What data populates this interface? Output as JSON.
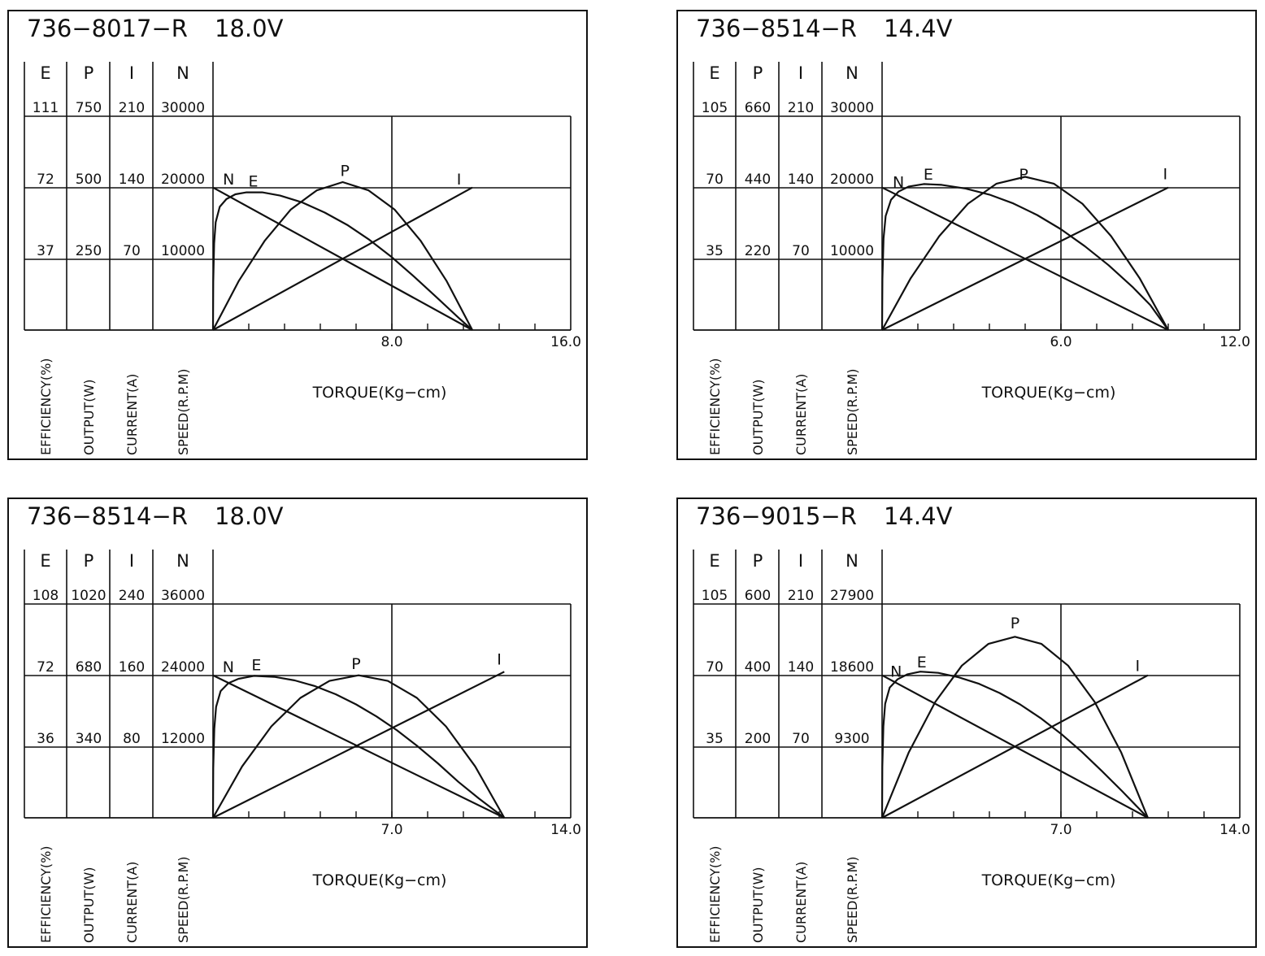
{
  "style": {
    "ink": "#111111",
    "background": "#ffffff"
  },
  "axis_headers": {
    "efficiency": "E",
    "output": "P",
    "current": "I",
    "speed": "N"
  },
  "axis_labels": {
    "efficiency": "EFFICIENCY(%)",
    "output": "OUTPUT(W)",
    "current": "CURRENT(A)",
    "speed": "SPEED(R.P.M)",
    "torque": "TORQUE(Kg−cm)"
  },
  "chart_data": [
    {
      "type": "line",
      "title": "736−8017−R",
      "voltage": "18.0V",
      "xlabel": "TORQUE(Kg−cm)",
      "xlim": [
        0,
        16
      ],
      "x_ticks": [
        "8.0",
        "16.0"
      ],
      "x_minor_step": 1.6,
      "y_scale_labels": {
        "E": [
          "111",
          "72",
          "37"
        ],
        "P": [
          "750",
          "500",
          "250"
        ],
        "I": [
          "210",
          "140",
          "70"
        ],
        "N": [
          "30000",
          "20000",
          "10000"
        ]
      },
      "series": [
        {
          "name": "N",
          "axis": "speed",
          "unit_max": 30000,
          "label_at": [
            0.7,
            20400
          ],
          "points": [
            [
              0,
              20000
            ],
            [
              11.6,
              0
            ]
          ]
        },
        {
          "name": "I",
          "axis": "current",
          "unit_max": 210,
          "label_at": [
            11.0,
            143
          ],
          "points": [
            [
              0,
              0
            ],
            [
              11.6,
              140
            ]
          ]
        },
        {
          "name": "P",
          "axis": "output",
          "unit_max": 750,
          "label_at": [
            5.9,
            540
          ],
          "points": [
            [
              0,
              0
            ],
            [
              1.16,
              173
            ],
            [
              2.32,
              314
            ],
            [
              3.48,
              423
            ],
            [
              4.64,
              490
            ],
            [
              5.8,
              519
            ],
            [
              6.96,
              490
            ],
            [
              8.12,
              423
            ],
            [
              9.28,
              314
            ],
            [
              10.44,
              173
            ],
            [
              11.6,
              0
            ]
          ]
        },
        {
          "name": "E",
          "axis": "efficiency",
          "unit_max": 111,
          "label_at": [
            1.8,
            74.5
          ],
          "points": [
            [
              0,
              0
            ],
            [
              0.01,
              25
            ],
            [
              0.05,
              45
            ],
            [
              0.12,
              56
            ],
            [
              0.3,
              64
            ],
            [
              0.6,
              68
            ],
            [
              1.0,
              70.5
            ],
            [
              1.5,
              71.5
            ],
            [
              2.2,
              71.5
            ],
            [
              3.0,
              69.8
            ],
            [
              4.0,
              66.2
            ],
            [
              5.0,
              61
            ],
            [
              6.0,
              54.6
            ],
            [
              7.0,
              46.8
            ],
            [
              8.0,
              37.8
            ],
            [
              9.0,
              27.7
            ],
            [
              10.0,
              17
            ],
            [
              11.0,
              6.2
            ],
            [
              11.6,
              0
            ]
          ]
        }
      ]
    },
    {
      "type": "line",
      "title": "736−8514−R",
      "voltage": "14.4V",
      "xlabel": "TORQUE(Kg−cm)",
      "xlim": [
        0,
        12
      ],
      "x_ticks": [
        "6.0",
        "12.0"
      ],
      "x_minor_step": 1.2,
      "y_scale_labels": {
        "E": [
          "105",
          "70",
          "35"
        ],
        "P": [
          "660",
          "440",
          "220"
        ],
        "I": [
          "210",
          "140",
          "70"
        ],
        "N": [
          "30000",
          "20000",
          "10000"
        ]
      },
      "series": [
        {
          "name": "N",
          "axis": "speed",
          "unit_max": 30000,
          "label_at": [
            0.55,
            20000
          ],
          "points": [
            [
              0,
              20000
            ],
            [
              9.6,
              0
            ]
          ]
        },
        {
          "name": "I",
          "axis": "current",
          "unit_max": 210,
          "label_at": [
            9.5,
            148
          ],
          "points": [
            [
              0,
              0
            ],
            [
              9.6,
              140
            ]
          ]
        },
        {
          "name": "P",
          "axis": "output",
          "unit_max": 660,
          "label_at": [
            4.75,
            464
          ],
          "points": [
            [
              0,
              0
            ],
            [
              0.96,
              160
            ],
            [
              1.92,
              290
            ],
            [
              2.88,
              390
            ],
            [
              3.84,
              452
            ],
            [
              4.8,
              473
            ],
            [
              5.76,
              452
            ],
            [
              6.72,
              390
            ],
            [
              7.68,
              290
            ],
            [
              8.64,
              160
            ],
            [
              9.6,
              0
            ]
          ]
        },
        {
          "name": "E",
          "axis": "efficiency",
          "unit_max": 105,
          "label_at": [
            1.55,
            73.8
          ],
          "points": [
            [
              0,
              0
            ],
            [
              0.01,
              25
            ],
            [
              0.05,
              45
            ],
            [
              0.12,
              56
            ],
            [
              0.3,
              64
            ],
            [
              0.55,
              68
            ],
            [
              0.9,
              70.5
            ],
            [
              1.4,
              71.7
            ],
            [
              2.0,
              71.3
            ],
            [
              2.8,
              69.5
            ],
            [
              3.6,
              66.5
            ],
            [
              4.4,
              62.2
            ],
            [
              5.2,
              56.5
            ],
            [
              6.0,
              49.5
            ],
            [
              6.8,
              41.2
            ],
            [
              7.6,
              31.8
            ],
            [
              8.4,
              21.2
            ],
            [
              9.0,
              12.2
            ],
            [
              9.6,
              0
            ]
          ]
        }
      ]
    },
    {
      "type": "line",
      "title": "736−8514−R",
      "voltage": "18.0V",
      "xlabel": "TORQUE(Kg−cm)",
      "xlim": [
        0,
        14
      ],
      "x_ticks": [
        "7.0",
        "14.0"
      ],
      "x_minor_step": 1.4,
      "y_scale_labels": {
        "E": [
          "108",
          "72",
          "36"
        ],
        "P": [
          "1020",
          "680",
          "340"
        ],
        "I": [
          "240",
          "160",
          "80"
        ],
        "N": [
          "36000",
          "24000",
          "12000"
        ]
      },
      "series": [
        {
          "name": "N",
          "axis": "speed",
          "unit_max": 36000,
          "label_at": [
            0.6,
            24500
          ],
          "points": [
            [
              0,
              24000
            ],
            [
              11.4,
              0
            ]
          ]
        },
        {
          "name": "I",
          "axis": "current",
          "unit_max": 240,
          "label_at": [
            11.2,
            172
          ],
          "points": [
            [
              0,
              0
            ],
            [
              11.4,
              164
            ]
          ]
        },
        {
          "name": "P",
          "axis": "output",
          "unit_max": 1020,
          "label_at": [
            5.6,
            710
          ],
          "points": [
            [
              0,
              0
            ],
            [
              1.14,
              245
            ],
            [
              2.28,
              436
            ],
            [
              3.42,
              572
            ],
            [
              4.56,
              653
            ],
            [
              5.7,
              680
            ],
            [
              6.84,
              653
            ],
            [
              7.98,
              572
            ],
            [
              9.12,
              436
            ],
            [
              10.26,
              245
            ],
            [
              11.4,
              0
            ]
          ]
        },
        {
          "name": "E",
          "axis": "efficiency",
          "unit_max": 108,
          "label_at": [
            1.7,
            74.5
          ],
          "points": [
            [
              0,
              0
            ],
            [
              0.01,
              25
            ],
            [
              0.05,
              45
            ],
            [
              0.12,
              56
            ],
            [
              0.3,
              64
            ],
            [
              0.6,
              68
            ],
            [
              1.0,
              70.2
            ],
            [
              1.6,
              71.7
            ],
            [
              2.4,
              71.2
            ],
            [
              3.2,
              69.4
            ],
            [
              4.0,
              66.5
            ],
            [
              4.8,
              62.4
            ],
            [
              5.6,
              57.3
            ],
            [
              6.4,
              51.2
            ],
            [
              7.2,
              44.2
            ],
            [
              8.0,
              36.2
            ],
            [
              8.8,
              27.5
            ],
            [
              9.6,
              18.2
            ],
            [
              10.4,
              9.8
            ],
            [
              11.4,
              0
            ]
          ]
        }
      ]
    },
    {
      "type": "line",
      "title": "736−9015−R",
      "voltage": "14.4V",
      "xlabel": "TORQUE(Kg−cm)",
      "xlim": [
        0,
        14
      ],
      "x_ticks": [
        "7.0",
        "14.0"
      ],
      "x_minor_step": 1.4,
      "y_scale_labels": {
        "E": [
          "105",
          "70",
          "35"
        ],
        "P": [
          "600",
          "400",
          "200"
        ],
        "I": [
          "210",
          "140",
          "70"
        ],
        "N": [
          "27900",
          "18600",
          "9300"
        ]
      },
      "series": [
        {
          "name": "N",
          "axis": "speed",
          "unit_max": 27900,
          "label_at": [
            0.55,
            18400
          ],
          "points": [
            [
              0,
              18600
            ],
            [
              10.4,
              0
            ]
          ]
        },
        {
          "name": "I",
          "axis": "current",
          "unit_max": 210,
          "label_at": [
            10.0,
            144
          ],
          "points": [
            [
              0,
              0
            ],
            [
              10.4,
              140
            ]
          ]
        },
        {
          "name": "P",
          "axis": "output",
          "unit_max": 600,
          "label_at": [
            5.2,
            532
          ],
          "points": [
            [
              0,
              0
            ],
            [
              1.04,
              183
            ],
            [
              2.08,
              325
            ],
            [
              3.12,
              427
            ],
            [
              4.16,
              488
            ],
            [
              5.2,
              508
            ],
            [
              6.24,
              488
            ],
            [
              7.28,
              427
            ],
            [
              8.32,
              325
            ],
            [
              9.36,
              183
            ],
            [
              10.4,
              0
            ]
          ]
        },
        {
          "name": "E",
          "axis": "efficiency",
          "unit_max": 105,
          "label_at": [
            1.55,
            73.8
          ],
          "points": [
            [
              0,
              0
            ],
            [
              0.01,
              25
            ],
            [
              0.05,
              45
            ],
            [
              0.12,
              56
            ],
            [
              0.3,
              64
            ],
            [
              0.6,
              68
            ],
            [
              1.0,
              70.5
            ],
            [
              1.5,
              71.8
            ],
            [
              2.2,
              71.2
            ],
            [
              3.0,
              69
            ],
            [
              3.8,
              65.8
            ],
            [
              4.6,
              61.3
            ],
            [
              5.4,
              55.7
            ],
            [
              6.2,
              49
            ],
            [
              7.0,
              41.3
            ],
            [
              7.8,
              32.6
            ],
            [
              8.6,
              23
            ],
            [
              9.4,
              13
            ],
            [
              10.4,
              0
            ]
          ]
        }
      ]
    }
  ]
}
